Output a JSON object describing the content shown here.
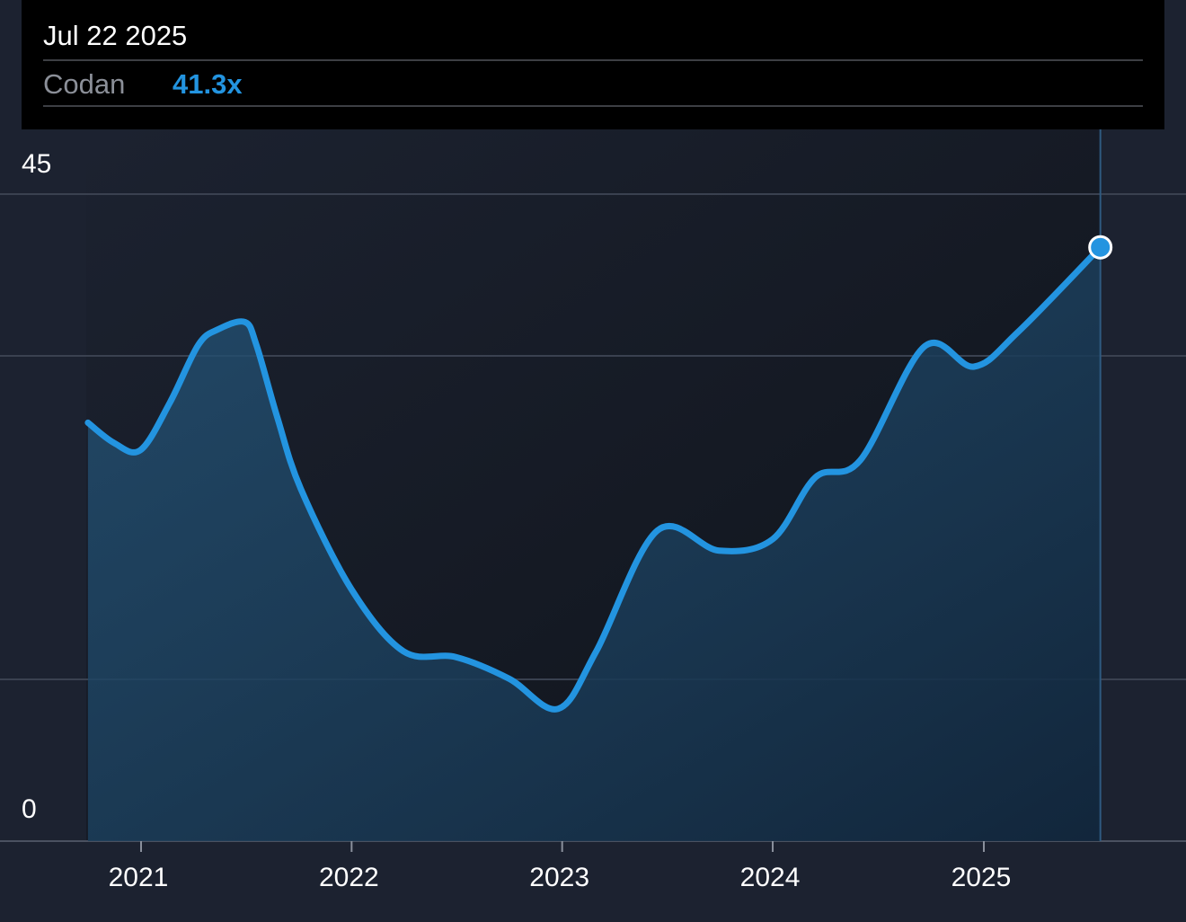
{
  "tooltip": {
    "date": "Jul 22 2025",
    "series_name": "Codan",
    "value_label": "41.3x"
  },
  "colors": {
    "background": "#1c2230",
    "line": "#2394e0",
    "grid": "#3a4150",
    "tooltip_bg": "#000000"
  },
  "chart_data": {
    "type": "area",
    "x_ticks": [
      "2021",
      "2022",
      "2023",
      "2024",
      "2025"
    ],
    "y_ticks": [
      "0",
      "45"
    ],
    "ylim": [
      0,
      45
    ],
    "grid": true,
    "highlight": {
      "x": "2025-07-22",
      "y": 41.3
    },
    "series": [
      {
        "name": "Codan",
        "points": [
          {
            "x": "2020-10-01",
            "y": 29.1
          },
          {
            "x": "2020-11-15",
            "y": 27.7
          },
          {
            "x": "2020-12-31",
            "y": 27.2
          },
          {
            "x": "2021-02-20",
            "y": 30.5
          },
          {
            "x": "2021-04-10",
            "y": 34.5
          },
          {
            "x": "2021-05-15",
            "y": 35.6
          },
          {
            "x": "2021-06-30",
            "y": 36.1
          },
          {
            "x": "2021-07-20",
            "y": 34.5
          },
          {
            "x": "2021-08-25",
            "y": 29.5
          },
          {
            "x": "2021-10-05",
            "y": 24.5
          },
          {
            "x": "2022-01-01",
            "y": 17.5
          },
          {
            "x": "2022-04-01",
            "y": 13.2
          },
          {
            "x": "2022-07-01",
            "y": 12.8
          },
          {
            "x": "2022-10-01",
            "y": 11.3
          },
          {
            "x": "2022-12-25",
            "y": 9.2
          },
          {
            "x": "2023-03-01",
            "y": 13.2
          },
          {
            "x": "2023-06-15",
            "y": 21.6
          },
          {
            "x": "2023-09-30",
            "y": 20.2
          },
          {
            "x": "2024-01-01",
            "y": 21.0
          },
          {
            "x": "2024-03-15",
            "y": 25.3
          },
          {
            "x": "2024-06-01",
            "y": 26.5
          },
          {
            "x": "2024-09-20",
            "y": 34.4
          },
          {
            "x": "2024-12-15",
            "y": 33.0
          },
          {
            "x": "2025-03-01",
            "y": 35.4
          },
          {
            "x": "2025-07-22",
            "y": 41.3
          }
        ]
      }
    ]
  }
}
